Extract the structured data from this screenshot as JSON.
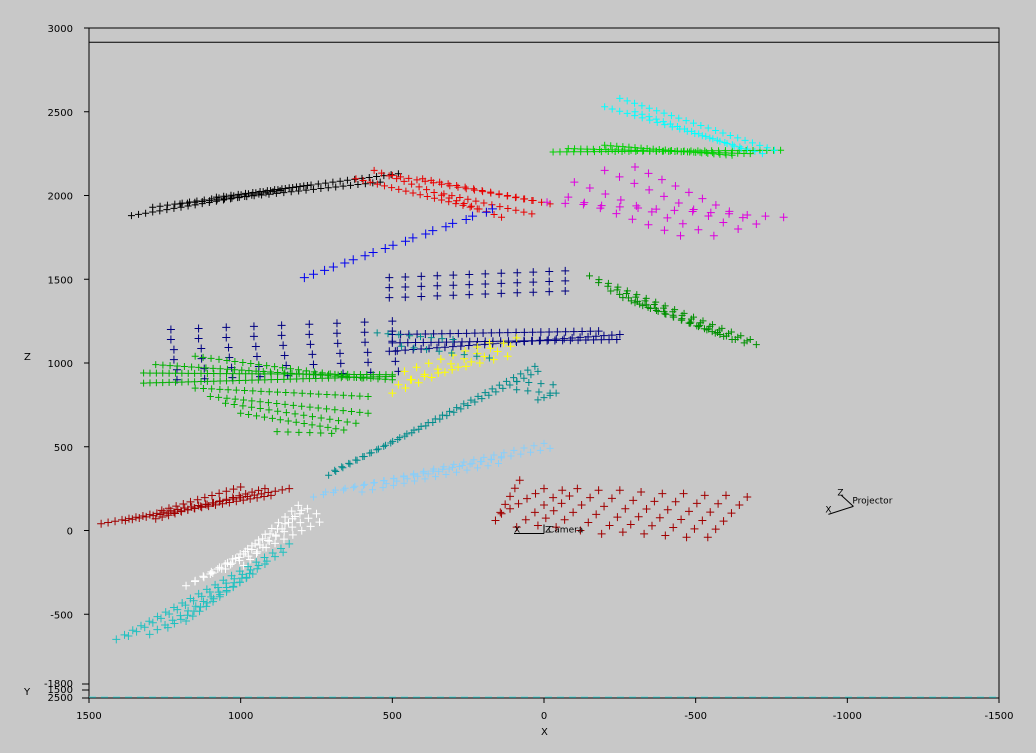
{
  "chart_data": {
    "type": "scatter",
    "title": "",
    "xlabel": "X",
    "ylabel": "Z",
    "ylabel_lower": "Y",
    "xlim": [
      1500,
      -1500
    ],
    "ylim": [
      -1000,
      3000
    ],
    "x_ticks": [
      "1500",
      "1000",
      "500",
      "0",
      "-500",
      "-1000",
      "-1500"
    ],
    "x_tick_values": [
      1500,
      1000,
      500,
      0,
      -500,
      -1000,
      -1500
    ],
    "y_ticks": [
      "3000",
      "2500",
      "2000",
      "1500",
      "1000",
      "500",
      "0",
      "-500"
    ],
    "y_tick_values": [
      3000,
      2500,
      2000,
      1500,
      1000,
      500,
      0,
      -500
    ],
    "lower_ticks": [
      "-1800",
      "1500",
      "2500"
    ],
    "grid": false,
    "marker": "plus",
    "top_rule_z": 2915,
    "bottom_dashed_z": -995,
    "bottom_dashed_color": "#48d8d8",
    "annotations": {
      "camera_label": "Camera",
      "camera_axis_label": "X",
      "camera_z_label": "Z",
      "camera_at": [
        0,
        0
      ],
      "projector_label": "Projector",
      "projector_axis_label": "X",
      "projector_z_label": "Z",
      "projector_at": [
        -1020,
        180
      ]
    },
    "series": [
      {
        "color": "#000000",
        "size": 7,
        "lines": [
          {
            "from": [
              1360,
              1880
            ],
            "to": [
              870,
              2030
            ],
            "n": 22
          },
          {
            "from": [
              1290,
              1930
            ],
            "to": [
              780,
              2060
            ],
            "n": 22
          },
          {
            "from": [
              1200,
              1950
            ],
            "to": [
              540,
              2080
            ],
            "n": 28
          },
          {
            "from": [
              1080,
              1990
            ],
            "to": [
              480,
              2130
            ],
            "n": 26
          }
        ]
      },
      {
        "color": "#e80000",
        "size": 7,
        "lines": [
          {
            "from": [
              620,
              2100
            ],
            "to": [
              220,
              1920
            ],
            "n": 18
          },
          {
            "from": [
              560,
              2150
            ],
            "to": [
              140,
              1870
            ],
            "n": 18
          },
          {
            "from": [
              500,
              2120
            ],
            "to": [
              40,
              1970
            ],
            "n": 18
          },
          {
            "from": [
              400,
              2100
            ],
            "to": [
              -20,
              1950
            ],
            "n": 16
          },
          {
            "from": [
              330,
              2010
            ],
            "to": [
              40,
              1890
            ],
            "n": 12
          }
        ]
      },
      {
        "color": "#0000ee",
        "size": 9,
        "lines": [
          {
            "from": [
              790,
              1510
            ],
            "to": [
              190,
              1900
            ],
            "n": 10
          },
          {
            "from": [
              760,
              1530
            ],
            "to": [
              170,
              1920
            ],
            "n": 10
          }
        ]
      },
      {
        "color": "#000080",
        "size": 8,
        "lines": [
          {
            "from": [
              1230,
              1200
            ],
            "to": [
              500,
              1250
            ],
            "n": 9
          },
          {
            "from": [
              1230,
              1140
            ],
            "to": [
              500,
              1190
            ],
            "n": 9
          },
          {
            "from": [
              1220,
              1080
            ],
            "to": [
              500,
              1130
            ],
            "n": 9
          },
          {
            "from": [
              1220,
              1020
            ],
            "to": [
              490,
              1070
            ],
            "n": 9
          },
          {
            "from": [
              1210,
              960
            ],
            "to": [
              490,
              1010
            ],
            "n": 9
          },
          {
            "from": [
              1210,
              900
            ],
            "to": [
              480,
              950
            ],
            "n": 9
          },
          {
            "from": [
              510,
              1070
            ],
            "to": [
              -250,
              1170
            ],
            "n": 30
          },
          {
            "from": [
              500,
              1120
            ],
            "to": [
              -240,
              1140
            ],
            "n": 30
          },
          {
            "from": [
              500,
              1170
            ],
            "to": [
              -180,
              1190
            ],
            "n": 26
          },
          {
            "from": [
              510,
              1510
            ],
            "to": [
              -70,
              1550
            ],
            "n": 12
          },
          {
            "from": [
              510,
              1450
            ],
            "to": [
              -70,
              1490
            ],
            "n": 12
          },
          {
            "from": [
              510,
              1390
            ],
            "to": [
              -70,
              1430
            ],
            "n": 12
          }
        ]
      },
      {
        "color": "#00d000",
        "size": 7,
        "lines": [
          {
            "from": [
              -30,
              2260
            ],
            "to": [
              -780,
              2270
            ],
            "n": 34
          },
          {
            "from": [
              -80,
              2280
            ],
            "to": [
              -680,
              2250
            ],
            "n": 30
          },
          {
            "from": [
              -200,
              2300
            ],
            "to": [
              -620,
              2240
            ],
            "n": 22
          }
        ]
      },
      {
        "color": "#00b000",
        "size": 7,
        "lines": [
          {
            "from": [
              1320,
              940
            ],
            "to": [
              500,
              930
            ],
            "n": 40
          },
          {
            "from": [
              1320,
              880
            ],
            "to": [
              500,
              920
            ],
            "n": 40
          },
          {
            "from": [
              1280,
              990
            ],
            "to": [
              500,
              900
            ],
            "n": 34
          },
          {
            "from": [
              1150,
              1040
            ],
            "to": [
              600,
              910
            ],
            "n": 22
          },
          {
            "from": [
              1150,
              850
            ],
            "to": [
              580,
              800
            ],
            "n": 22
          },
          {
            "from": [
              1100,
              800
            ],
            "to": [
              580,
              700
            ],
            "n": 20
          },
          {
            "from": [
              1050,
              760
            ],
            "to": [
              620,
              640
            ],
            "n": 16
          },
          {
            "from": [
              1000,
              700
            ],
            "to": [
              660,
              600
            ],
            "n": 14
          },
          {
            "from": [
              880,
              590
            ],
            "to": [
              700,
              580
            ],
            "n": 6
          }
        ]
      },
      {
        "color": "#009000",
        "size": 7,
        "lines": [
          {
            "from": [
              -150,
              1520
            ],
            "to": [
              -680,
              1140
            ],
            "n": 18
          },
          {
            "from": [
              -180,
              1480
            ],
            "to": [
              -700,
              1110
            ],
            "n": 18
          },
          {
            "from": [
              -220,
              1430
            ],
            "to": [
              -660,
              1120
            ],
            "n": 16
          },
          {
            "from": [
              -260,
              1390
            ],
            "to": [
              -620,
              1140
            ],
            "n": 14
          },
          {
            "from": [
              -300,
              1360
            ],
            "to": [
              -580,
              1170
            ],
            "n": 12
          }
        ]
      },
      {
        "color": "#dd00dd",
        "size": 8,
        "lines": [
          {
            "from": [
              -10,
              1960
            ],
            "to": [
              -790,
              1870
            ],
            "n": 14
          },
          {
            "from": [
              -100,
              2080
            ],
            "to": [
              -560,
              1760
            ],
            "n": 10
          },
          {
            "from": [
              -200,
              2150
            ],
            "to": [
              -640,
              1800
            ],
            "n": 10
          },
          {
            "from": [
              -300,
              2170
            ],
            "to": [
              -700,
              1830
            ],
            "n": 10
          },
          {
            "from": [
              -80,
              1990
            ],
            "to": [
              -450,
              1760
            ],
            "n": 8
          }
        ]
      },
      {
        "color": "#00ffff",
        "size": 7,
        "lines": [
          {
            "from": [
              -200,
              2530
            ],
            "to": [
              -720,
              2250
            ],
            "n": 22
          },
          {
            "from": [
              -250,
              2580
            ],
            "to": [
              -760,
              2270
            ],
            "n": 22
          },
          {
            "from": [
              -300,
              2500
            ],
            "to": [
              -650,
              2280
            ],
            "n": 16
          }
        ]
      },
      {
        "color": "#ffff00",
        "size": 8,
        "lines": [
          {
            "from": [
              500,
              820
            ],
            "to": [
              110,
              1100
            ],
            "n": 10
          },
          {
            "from": [
              480,
              870
            ],
            "to": [
              90,
              1150
            ],
            "n": 10
          },
          {
            "from": [
              440,
              900
            ],
            "to": [
              120,
              1040
            ],
            "n": 8
          },
          {
            "from": [
              460,
              950
            ],
            "to": [
              180,
              1120
            ],
            "n": 8
          }
        ]
      },
      {
        "color": "#008b8b",
        "size": 7,
        "lines": [
          {
            "from": [
              710,
              330
            ],
            "to": [
              30,
              980
            ],
            "n": 30
          },
          {
            "from": [
              690,
              360
            ],
            "to": [
              20,
              950
            ],
            "n": 30
          },
          {
            "from": [
              550,
              1180
            ],
            "to": [
              300,
              1140
            ],
            "n": 8
          },
          {
            "from": [
              470,
              1100
            ],
            "to": [
              180,
              1030
            ],
            "n": 8
          },
          {
            "from": [
              90,
              890
            ],
            "to": [
              -30,
              870
            ],
            "n": 4
          },
          {
            "from": [
              90,
              840
            ],
            "to": [
              -20,
              820
            ],
            "n": 4
          },
          {
            "from": [
              20,
              780
            ],
            "to": [
              -40,
              820
            ],
            "n": 4
          }
        ]
      },
      {
        "color": "#87cefa",
        "size": 7,
        "lines": [
          {
            "from": [
              760,
              200
            ],
            "to": [
              0,
              520
            ],
            "n": 24
          },
          {
            "from": [
              720,
              230
            ],
            "to": [
              -20,
              490
            ],
            "n": 24
          },
          {
            "from": [
              600,
              230
            ],
            "to": [
              150,
              400
            ],
            "n": 14
          },
          {
            "from": [
              520,
              280
            ],
            "to": [
              140,
              440
            ],
            "n": 12
          }
        ]
      },
      {
        "color": "#a00000",
        "size": 8,
        "lines": [
          {
            "from": [
              1460,
              40
            ],
            "to": [
              840,
              250
            ],
            "n": 28
          },
          {
            "from": [
              1380,
              60
            ],
            "to": [
              900,
              210
            ],
            "n": 22
          },
          {
            "from": [
              1280,
              70
            ],
            "to": [
              920,
              250
            ],
            "n": 18
          },
          {
            "from": [
              1260,
              120
            ],
            "to": [
              1000,
              260
            ],
            "n": 12
          },
          {
            "from": [
              160,
              60
            ],
            "to": [
              80,
              300
            ],
            "n": 6
          },
          {
            "from": [
              140,
              100
            ],
            "to": [
              0,
              250
            ],
            "n": 6
          },
          {
            "from": [
              90,
              20
            ],
            "to": [
              -60,
              240
            ],
            "n": 6
          },
          {
            "from": [
              20,
              30
            ],
            "to": [
              -110,
              250
            ],
            "n": 6
          },
          {
            "from": [
              -40,
              20
            ],
            "to": [
              -180,
              240
            ],
            "n": 6
          },
          {
            "from": [
              -120,
              0
            ],
            "to": [
              -250,
              240
            ],
            "n": 6
          },
          {
            "from": [
              -190,
              -20
            ],
            "to": [
              -320,
              230
            ],
            "n": 6
          },
          {
            "from": [
              -260,
              -10
            ],
            "to": [
              -390,
              220
            ],
            "n": 6
          },
          {
            "from": [
              -330,
              -20
            ],
            "to": [
              -460,
              220
            ],
            "n": 6
          },
          {
            "from": [
              -400,
              -30
            ],
            "to": [
              -530,
              210
            ],
            "n": 6
          },
          {
            "from": [
              -470,
              -40
            ],
            "to": [
              -600,
              210
            ],
            "n": 6
          },
          {
            "from": [
              -540,
              -40
            ],
            "to": [
              -670,
              200
            ],
            "n": 6
          }
        ]
      },
      {
        "color": "#ffffff",
        "size": 8,
        "lines": [
          {
            "from": [
              1180,
              -330
            ],
            "to": [
              740,
              50
            ],
            "n": 16
          },
          {
            "from": [
              1150,
              -300
            ],
            "to": [
              750,
              100
            ],
            "n": 16
          },
          {
            "from": [
              1100,
              -260
            ],
            "to": [
              780,
              130
            ],
            "n": 14
          },
          {
            "from": [
              1050,
              -230
            ],
            "to": [
              810,
              150
            ],
            "n": 12
          },
          {
            "from": [
              990,
              -210
            ],
            "to": [
              800,
              120
            ],
            "n": 10
          }
        ]
      },
      {
        "color": "#20c0c0",
        "size": 8,
        "lines": [
          {
            "from": [
              1410,
              -650
            ],
            "to": [
              840,
              -80
            ],
            "n": 22
          },
          {
            "from": [
              1370,
              -630
            ],
            "to": [
              860,
              -130
            ],
            "n": 20
          },
          {
            "from": [
              1300,
              -620
            ],
            "to": [
              920,
              -200
            ],
            "n": 16
          },
          {
            "from": [
              1240,
              -580
            ],
            "to": [
              960,
              -260
            ],
            "n": 14
          },
          {
            "from": [
              1180,
              -540
            ],
            "to": [
              980,
              -280
            ],
            "n": 10
          }
        ]
      }
    ]
  }
}
